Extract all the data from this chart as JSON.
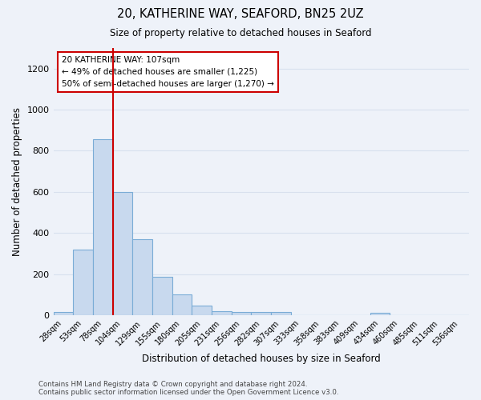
{
  "title_line1": "20, KATHERINE WAY, SEAFORD, BN25 2UZ",
  "title_line2": "Size of property relative to detached houses in Seaford",
  "xlabel": "Distribution of detached houses by size in Seaford",
  "ylabel": "Number of detached properties",
  "categories": [
    "28sqm",
    "53sqm",
    "78sqm",
    "104sqm",
    "129sqm",
    "155sqm",
    "180sqm",
    "205sqm",
    "231sqm",
    "256sqm",
    "282sqm",
    "307sqm",
    "333sqm",
    "358sqm",
    "383sqm",
    "409sqm",
    "434sqm",
    "460sqm",
    "485sqm",
    "511sqm",
    "536sqm"
  ],
  "values": [
    15,
    320,
    855,
    600,
    370,
    185,
    100,
    45,
    20,
    15,
    15,
    15,
    0,
    0,
    0,
    0,
    12,
    0,
    0,
    0,
    0
  ],
  "bar_color": "#c8d9ee",
  "bar_edge_color": "#7aacd6",
  "vline_color": "#cc0000",
  "annotation_text": "20 KATHERINE WAY: 107sqm\n← 49% of detached houses are smaller (1,225)\n50% of semi-detached houses are larger (1,270) →",
  "annotation_box_color": "#ffffff",
  "annotation_box_edge": "#cc0000",
  "footer_text": "Contains HM Land Registry data © Crown copyright and database right 2024.\nContains public sector information licensed under the Open Government Licence v3.0.",
  "background_color": "#eef2f9",
  "grid_color": "#d8e0ee",
  "ylim": [
    0,
    1300
  ],
  "yticks": [
    0,
    200,
    400,
    600,
    800,
    1000,
    1200
  ]
}
